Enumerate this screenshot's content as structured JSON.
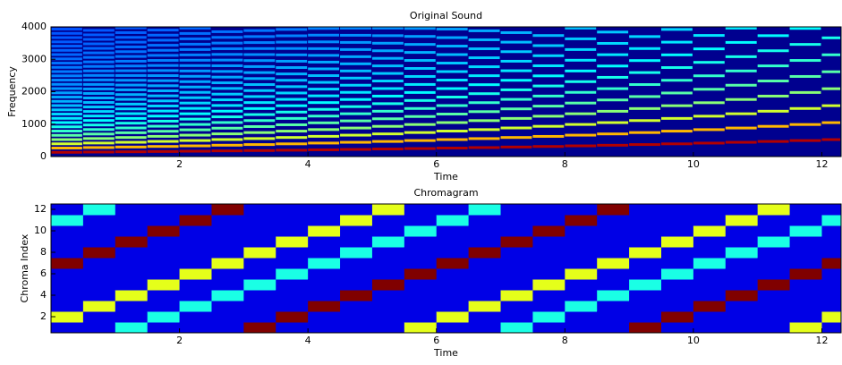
{
  "chart_data": [
    {
      "type": "spectrogram",
      "title": "Original Sound",
      "x_label": "Time",
      "y_label": "Frequency",
      "x": [
        0,
        0.5,
        1,
        1.5,
        2,
        2.5,
        3,
        3.5,
        4,
        4.5,
        5,
        5.5,
        6,
        6.5,
        7,
        7.5,
        8,
        8.5,
        9,
        9.5,
        10,
        10.5,
        11,
        11.5,
        12
      ],
      "values": [
        131,
        139,
        147,
        156,
        165,
        175,
        185,
        196,
        208,
        220,
        233,
        247,
        262,
        277,
        294,
        311,
        330,
        349,
        370,
        392,
        415,
        440,
        466,
        494,
        523
      ],
      "xlim": [
        0,
        12.3
      ],
      "ylim": [
        0,
        4000
      ],
      "xticks": [
        2,
        4,
        6,
        8,
        10,
        12
      ],
      "yticks": [
        0,
        1000,
        2000,
        3000,
        4000
      ]
    },
    {
      "type": "heatmap",
      "title": "Chromagram",
      "x_label": "Time",
      "y_label": "Chroma Index",
      "x": [
        0,
        0.5,
        1,
        1.5,
        2,
        2.5,
        3,
        3.5,
        4,
        4.5,
        5,
        5.5,
        6,
        6.5,
        7,
        7.5,
        8,
        8.5,
        9,
        9.5,
        10,
        10.5,
        11,
        11.5,
        12
      ],
      "values": [
        [
          0.1,
          0.6,
          0.1,
          0.1,
          0.1,
          0.1,
          1,
          0.1,
          0.1,
          0.1,
          0.4,
          0.1
        ],
        [
          0.1,
          0.1,
          0.6,
          0.1,
          0.1,
          0.1,
          0.1,
          1,
          0.1,
          0.1,
          0.1,
          0.4
        ],
        [
          0.4,
          0.1,
          0.1,
          0.6,
          0.1,
          0.1,
          0.1,
          0.1,
          1,
          0.1,
          0.1,
          0.1
        ],
        [
          0.1,
          0.4,
          0.1,
          0.1,
          0.6,
          0.1,
          0.1,
          0.1,
          0.1,
          1,
          0.1,
          0.1
        ],
        [
          0.1,
          0.1,
          0.4,
          0.1,
          0.1,
          0.6,
          0.1,
          0.1,
          0.1,
          0.1,
          1,
          0.1
        ],
        [
          0.1,
          0.1,
          0.1,
          0.4,
          0.1,
          0.1,
          0.6,
          0.1,
          0.1,
          0.1,
          0.1,
          1
        ],
        [
          1,
          0.1,
          0.1,
          0.1,
          0.4,
          0.1,
          0.1,
          0.6,
          0.1,
          0.1,
          0.1,
          0.1
        ],
        [
          0.1,
          1,
          0.1,
          0.1,
          0.1,
          0.4,
          0.1,
          0.1,
          0.6,
          0.1,
          0.1,
          0.1
        ],
        [
          0.1,
          0.1,
          1,
          0.1,
          0.1,
          0.1,
          0.4,
          0.1,
          0.1,
          0.6,
          0.1,
          0.1
        ],
        [
          0.1,
          0.1,
          0.1,
          1,
          0.1,
          0.1,
          0.1,
          0.4,
          0.1,
          0.1,
          0.6,
          0.1
        ],
        [
          0.1,
          0.1,
          0.1,
          0.1,
          1,
          0.1,
          0.1,
          0.1,
          0.4,
          0.1,
          0.1,
          0.6
        ],
        [
          0.6,
          0.1,
          0.1,
          0.1,
          0.1,
          1,
          0.1,
          0.1,
          0.1,
          0.4,
          0.1,
          0.1
        ],
        [
          0.1,
          0.6,
          0.1,
          0.1,
          0.1,
          0.1,
          1,
          0.1,
          0.1,
          0.1,
          0.4,
          0.1
        ],
        [
          0.1,
          0.1,
          0.6,
          0.1,
          0.1,
          0.1,
          0.1,
          1,
          0.1,
          0.1,
          0.1,
          0.4
        ],
        [
          0.4,
          0.1,
          0.1,
          0.6,
          0.1,
          0.1,
          0.1,
          0.1,
          1,
          0.1,
          0.1,
          0.1
        ],
        [
          0.1,
          0.4,
          0.1,
          0.1,
          0.6,
          0.1,
          0.1,
          0.1,
          0.1,
          1,
          0.1,
          0.1
        ],
        [
          0.1,
          0.1,
          0.4,
          0.1,
          0.1,
          0.6,
          0.1,
          0.1,
          0.1,
          0.1,
          1,
          0.1
        ],
        [
          0.1,
          0.1,
          0.1,
          0.4,
          0.1,
          0.1,
          0.6,
          0.1,
          0.1,
          0.1,
          0.1,
          1
        ],
        [
          1,
          0.1,
          0.1,
          0.1,
          0.4,
          0.1,
          0.1,
          0.6,
          0.1,
          0.1,
          0.1,
          0.1
        ],
        [
          0.1,
          1,
          0.1,
          0.1,
          0.1,
          0.4,
          0.1,
          0.1,
          0.6,
          0.1,
          0.1,
          0.1
        ],
        [
          0.1,
          0.1,
          1,
          0.1,
          0.1,
          0.1,
          0.4,
          0.1,
          0.1,
          0.6,
          0.1,
          0.1
        ],
        [
          0.1,
          0.1,
          0.1,
          1,
          0.1,
          0.1,
          0.1,
          0.4,
          0.1,
          0.1,
          0.6,
          0.1
        ],
        [
          0.1,
          0.1,
          0.1,
          0.1,
          1,
          0.1,
          0.1,
          0.1,
          0.4,
          0.1,
          0.1,
          0.6
        ],
        [
          0.6,
          0.1,
          0.1,
          0.1,
          0.1,
          1,
          0.1,
          0.1,
          0.1,
          0.4,
          0.1,
          0.1
        ],
        [
          0.1,
          0.6,
          0.1,
          0.1,
          0.1,
          0.1,
          1,
          0.1,
          0.1,
          0.1,
          0.4,
          0.1
        ]
      ],
      "xlim": [
        0,
        12.3
      ],
      "ylim": [
        0.5,
        12.5
      ],
      "xticks": [
        2,
        4,
        6,
        8,
        10,
        12
      ],
      "yticks": [
        2,
        4,
        6,
        8,
        10,
        12
      ]
    }
  ]
}
